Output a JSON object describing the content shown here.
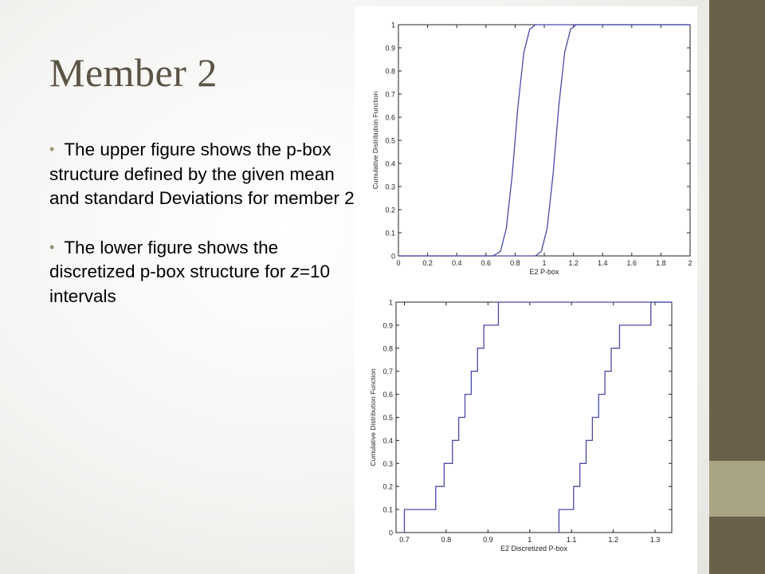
{
  "slide": {
    "title": "Member 2",
    "bullets": [
      {
        "text": "The upper figure shows the p-box structure defined by the given mean and standard Deviations for member 2"
      },
      {
        "pre": "The lower figure shows the discretized p-box structure for ",
        "italic": "z",
        "post": "=10 intervals"
      }
    ],
    "colors": {
      "accent_dark": "#6b6049",
      "accent_light": "#a9a482",
      "curve": "#4a4aa8",
      "title": "#5a5346"
    }
  },
  "chart_data": [
    {
      "type": "line",
      "xlabel": "E2 P-box",
      "ylabel": "Cumulative Distribution Function",
      "xlim": [
        0,
        2
      ],
      "ylim": [
        0,
        1
      ],
      "x_ticks": [
        "0",
        "0.2",
        "0.4",
        "0.6",
        "0.8",
        "1",
        "1.2",
        "1.4",
        "1.6",
        "1.8",
        "2"
      ],
      "y_ticks": [
        "0",
        "0.1",
        "0.2",
        "0.3",
        "0.4",
        "0.5",
        "0.6",
        "0.7",
        "0.8",
        "0.9",
        "1"
      ],
      "series": [
        {
          "x": [
            0,
            0.65,
            0.7,
            0.74,
            0.78,
            0.8,
            0.82,
            0.86,
            0.9,
            0.94,
            2
          ],
          "y": [
            0,
            0,
            0.02,
            0.12,
            0.35,
            0.5,
            0.65,
            0.88,
            0.98,
            1,
            1
          ]
        },
        {
          "x": [
            0,
            0.94,
            0.98,
            1.02,
            1.06,
            1.08,
            1.1,
            1.14,
            1.18,
            1.22,
            2
          ],
          "y": [
            0,
            0,
            0.02,
            0.12,
            0.35,
            0.5,
            0.65,
            0.88,
            0.98,
            1,
            1
          ]
        }
      ]
    },
    {
      "type": "line",
      "step": true,
      "xlabel": "E2 Discretized P-box",
      "ylabel": "Cumulative Distribution Function",
      "xlim": [
        0.68,
        1.34
      ],
      "ylim": [
        0,
        1
      ],
      "x_ticks": [
        {
          "v": 0.7,
          "label": "0.7"
        },
        {
          "v": 0.8,
          "label": "0.8"
        },
        {
          "v": 0.9,
          "label": "0.9"
        },
        {
          "v": 1.0,
          "label": "1"
        },
        {
          "v": 1.1,
          "label": "1.1"
        },
        {
          "v": 1.2,
          "label": "1.2"
        },
        {
          "v": 1.3,
          "label": "1.3"
        }
      ],
      "y_ticks": [
        "0",
        "0.1",
        "0.2",
        "0.3",
        "0.4",
        "0.5",
        "0.6",
        "0.7",
        "0.8",
        "0.9",
        "1"
      ],
      "series": [
        {
          "x": [
            0.7,
            0.775,
            0.795,
            0.815,
            0.83,
            0.845,
            0.86,
            0.875,
            0.89,
            0.925
          ],
          "y": [
            0.1,
            0.2,
            0.3,
            0.4,
            0.5,
            0.6,
            0.7,
            0.8,
            0.9,
            1.0
          ]
        },
        {
          "x": [
            1.07,
            1.105,
            1.12,
            1.135,
            1.15,
            1.165,
            1.18,
            1.195,
            1.215,
            1.29
          ],
          "y": [
            0.1,
            0.2,
            0.3,
            0.4,
            0.5,
            0.6,
            0.7,
            0.8,
            0.9,
            1.0
          ]
        }
      ]
    }
  ]
}
